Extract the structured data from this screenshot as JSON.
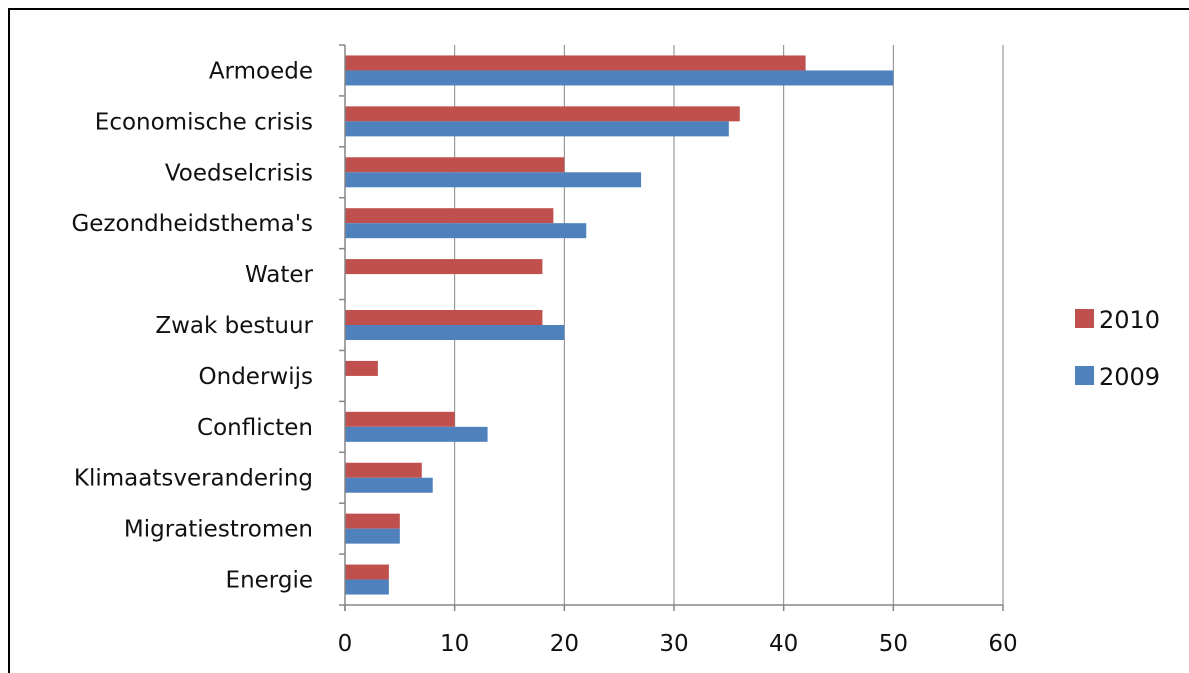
{
  "chart_data": {
    "type": "bar",
    "orientation": "horizontal",
    "categories": [
      "Armoede",
      "Economische crisis",
      "Voedselcrisis",
      "Gezondheidsthema's",
      "Water",
      "Zwak bestuur",
      "Onderwijs",
      "Conflicten",
      "Klimaatsverandering",
      "Migratiestromen",
      "Energie"
    ],
    "series": [
      {
        "name": "2010",
        "color": "#C0504D",
        "values": [
          42,
          36,
          20,
          19,
          18,
          18,
          3,
          10,
          7,
          5,
          4
        ]
      },
      {
        "name": "2009",
        "color": "#4F81BD",
        "values": [
          50,
          35,
          27,
          22,
          null,
          20,
          null,
          13,
          8,
          5,
          4
        ]
      }
    ],
    "xlim": [
      0,
      60
    ],
    "xticks": [
      0,
      10,
      20,
      30,
      40,
      50,
      60
    ],
    "grid": true,
    "legend": "right",
    "title": "",
    "xlabel": "",
    "ylabel": ""
  }
}
